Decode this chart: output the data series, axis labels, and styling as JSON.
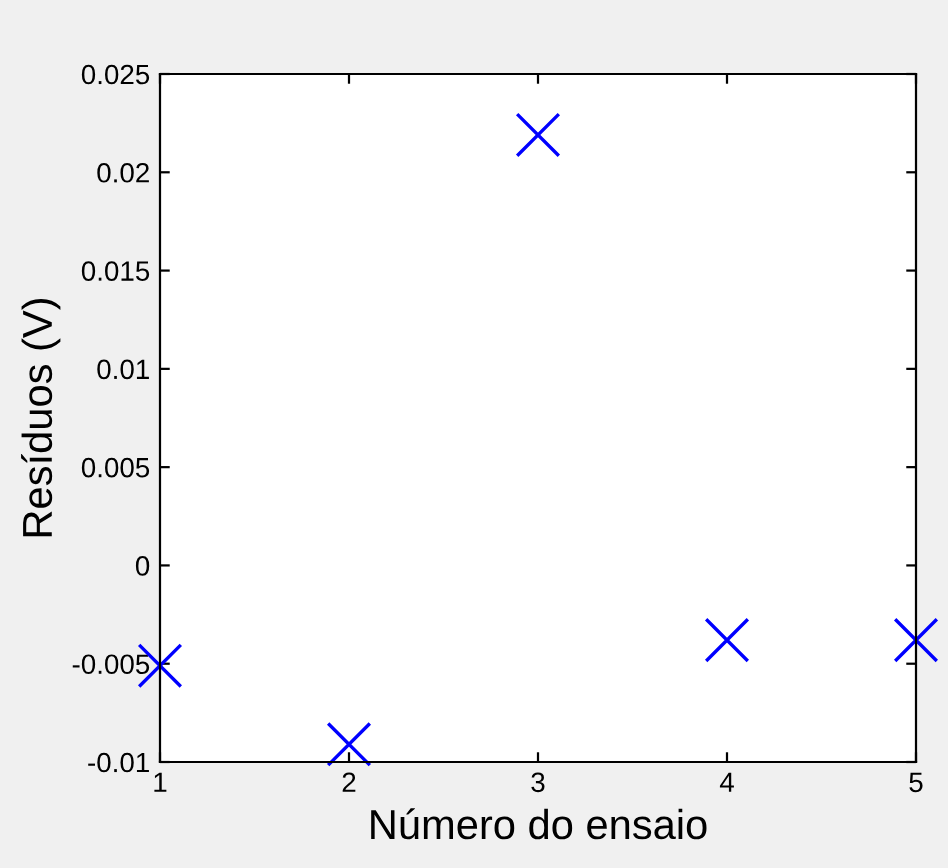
{
  "chart_data": {
    "type": "scatter",
    "xlabel": "Número do ensaio",
    "ylabel": "Resíduos (V)",
    "x": [
      1,
      2,
      3,
      4,
      5
    ],
    "series": [
      {
        "color": "#0000ff",
        "values": [
          -0.0051,
          -0.0091,
          0.0219,
          -0.0038,
          -0.0038
        ]
      }
    ],
    "marker": "cross",
    "xlim": [
      1,
      5
    ],
    "xticks": [
      1,
      2,
      3,
      4,
      5
    ],
    "ylim": [
      -0.01,
      0.025
    ],
    "yticks": [
      {
        "value": -0.01,
        "label": "-0.01"
      },
      {
        "value": -0.005,
        "label": "-0.005"
      },
      0,
      0.005,
      0.01,
      0.015,
      0.02,
      0.025
    ],
    "grid": false,
    "legend": false
  }
}
